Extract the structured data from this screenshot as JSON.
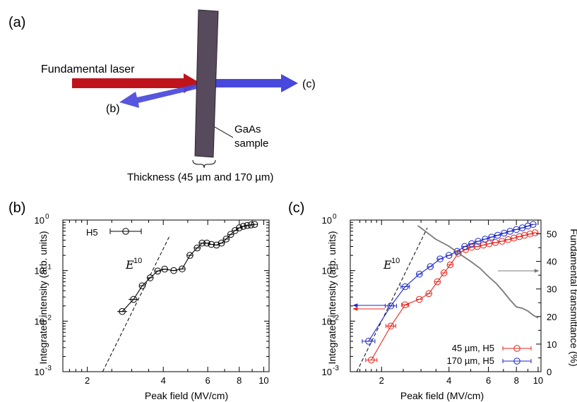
{
  "panel_a": {
    "label": "(a)",
    "laser_label": "Fundamental laser",
    "sample_label_line1": "GaAs",
    "sample_label_line2": "sample",
    "thickness_label": "Thickness (45 µm and 170 µm)",
    "beam_b_label": "(b)",
    "beam_c_label": "(c)",
    "colors": {
      "laser": "#c0141c",
      "harmonic": "#4848dc",
      "sample": "#574a5c"
    }
  },
  "chart_data": [
    {
      "panel": "(b)",
      "type": "scatter",
      "xlabel": "Peak field (MV/cm)",
      "ylabel": "Integrated intensity (arb. units)",
      "xscale": "log",
      "yscale": "log",
      "xlim": [
        1.6,
        10.5
      ],
      "ylim": [
        0.001,
        1.0
      ],
      "xticks": [
        2,
        4,
        6,
        8,
        10
      ],
      "xticklabels": [
        "2",
        "4",
        "6",
        "8",
        "10"
      ],
      "yticks": [
        0.001,
        0.01,
        0.1,
        1
      ],
      "yticklabels": [
        "10",
        "10",
        "10",
        "10"
      ],
      "ytickexponents": [
        "-3",
        "-2",
        "-1",
        "0"
      ],
      "fit_label": "E",
      "fit_exponent": "10",
      "legend": [
        "H5"
      ],
      "series": [
        {
          "name": "H5",
          "color": "#000000",
          "x": [
            2.75,
            3.05,
            3.3,
            3.55,
            3.8,
            4.05,
            4.4,
            4.75,
            5.1,
            5.45,
            5.7,
            5.95,
            6.2,
            6.5,
            6.8,
            7.1,
            7.4,
            7.7,
            8.0,
            8.3,
            8.6,
            8.9,
            9.2
          ],
          "y": [
            0.0155,
            0.027,
            0.05,
            0.072,
            0.098,
            0.107,
            0.1,
            0.108,
            0.2,
            0.28,
            0.35,
            0.35,
            0.33,
            0.32,
            0.35,
            0.42,
            0.52,
            0.62,
            0.7,
            0.75,
            0.78,
            0.8,
            0.82
          ]
        }
      ],
      "fit": {
        "exponent": 10,
        "x": [
          2.3,
          4.25
        ],
        "y": [
          0.001,
          0.5
        ]
      }
    },
    {
      "panel": "(c)",
      "type": "scatter",
      "xlabel": "Peak field (MV/cm)",
      "ylabel": "Integrated intensity (arb. units)",
      "y2label": "Fundamental transmittance (%)",
      "xscale": "log",
      "yscale": "log",
      "xlim": [
        1.45,
        10.3
      ],
      "ylim": [
        0.001,
        1.0
      ],
      "y2lim": [
        0,
        55
      ],
      "xticks": [
        2,
        4,
        6,
        8,
        10
      ],
      "xticklabels": [
        "2",
        "4",
        "6",
        "8",
        "10"
      ],
      "yticks": [
        0.001,
        0.01,
        0.1,
        1
      ],
      "yticklabels": [
        "10",
        "10",
        "10",
        "10"
      ],
      "ytickexponents": [
        "-3",
        "-2",
        "-1",
        "0"
      ],
      "y2ticks": [
        0,
        10,
        20,
        30,
        40,
        50
      ],
      "y2ticklabels": [
        "0",
        "10",
        "20",
        "30",
        "40",
        "50"
      ],
      "fit_label": "E",
      "fit_exponent": "10",
      "legend": [
        "45 µm, H5",
        "170 µm, H5"
      ],
      "series": [
        {
          "name": "45 µm, H5",
          "color": "#e8261c",
          "x": [
            1.8,
            2.2,
            2.55,
            2.95,
            3.25,
            3.55,
            3.8,
            4.05,
            4.4,
            4.75,
            5.05,
            5.35,
            5.7,
            6.05,
            6.45,
            6.9,
            7.35,
            7.8,
            8.25,
            8.7,
            9.2,
            9.7
          ],
          "y": [
            0.0017,
            0.008,
            0.021,
            0.027,
            0.035,
            0.06,
            0.09,
            0.13,
            0.22,
            0.26,
            0.29,
            0.3,
            0.32,
            0.34,
            0.36,
            0.38,
            0.41,
            0.44,
            0.47,
            0.5,
            0.53,
            0.56
          ]
        },
        {
          "name": "170 µm, H5",
          "color": "#1a26c8",
          "x": [
            1.75,
            2.2,
            2.55,
            2.95,
            3.3,
            3.65,
            4.0,
            4.35,
            4.7,
            5.05,
            5.4,
            5.8,
            6.2,
            6.6,
            7.05,
            7.5,
            8.0,
            8.5,
            9.0,
            9.5
          ],
          "y": [
            0.004,
            0.02,
            0.048,
            0.085,
            0.12,
            0.17,
            0.2,
            0.24,
            0.3,
            0.34,
            0.38,
            0.42,
            0.46,
            0.5,
            0.55,
            0.6,
            0.65,
            0.7,
            0.76,
            0.82
          ]
        },
        {
          "name": "Fundamental transmittance",
          "color": "#7a7a7a",
          "axis": "right",
          "x": [
            2.9,
            3.5,
            4.0,
            4.5,
            5.0,
            5.5,
            6.0,
            6.5,
            7.0,
            7.5,
            8.0,
            8.5,
            9.0,
            9.5,
            10.0
          ],
          "y": [
            53,
            48,
            45.5,
            42.5,
            40,
            37.5,
            34.5,
            32,
            29,
            26,
            23.5,
            23,
            22,
            20.5,
            19.5
          ]
        }
      ],
      "fit": {
        "exponent": 10,
        "x": [
          1.55,
          3.2
        ],
        "y": [
          0.001,
          0.7
        ]
      }
    }
  ]
}
